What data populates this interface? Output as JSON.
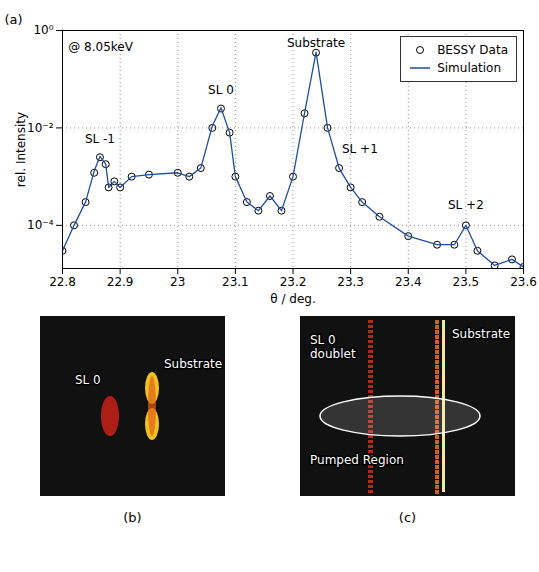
{
  "chart_data": {
    "type": "line",
    "panel_label": "(a)",
    "xlabel": "θ / deg.",
    "ylabel": "rel. Intensity",
    "log": "y",
    "grid": true,
    "legend": "top-right",
    "xlim": [
      22.8,
      23.6
    ],
    "xticks": [
      22.8,
      22.9,
      23,
      23.1,
      23.2,
      23.3,
      23.4,
      23.5,
      23.6
    ],
    "ylim": [
      1.3e-05,
      1
    ],
    "yticks": [
      {
        "value": 0.0001,
        "label": "10⁻⁴"
      },
      {
        "value": 0.01,
        "label": "10⁻²"
      },
      {
        "value": 1,
        "label": "10⁰"
      }
    ],
    "x": [
      22.8,
      22.82,
      22.84,
      22.855,
      22.865,
      22.875,
      22.88,
      22.89,
      22.9,
      22.92,
      22.95,
      23.0,
      23.02,
      23.04,
      23.06,
      23.075,
      23.09,
      23.1,
      23.12,
      23.14,
      23.16,
      23.18,
      23.2,
      23.22,
      23.24,
      23.26,
      23.28,
      23.3,
      23.32,
      23.35,
      23.4,
      23.45,
      23.48,
      23.5,
      23.52,
      23.55,
      23.58,
      23.6
    ],
    "series": [
      {
        "name": "BESSY Data",
        "type": "scatter",
        "marker": "circle",
        "color": "#000000",
        "values": [
          3e-05,
          0.0001,
          0.0003,
          0.0012,
          0.0025,
          0.0018,
          0.0006,
          0.0008,
          0.0006,
          0.001,
          0.0011,
          0.0012,
          0.001,
          0.0015,
          0.01,
          0.025,
          0.008,
          0.001,
          0.0003,
          0.0002,
          0.0004,
          0.0002,
          0.001,
          0.02,
          0.35,
          0.01,
          0.0015,
          0.0006,
          0.0003,
          0.00015,
          6e-05,
          4e-05,
          4e-05,
          0.0001,
          3e-05,
          1.5e-05,
          2e-05,
          1.4e-05
        ]
      },
      {
        "name": "Simulation",
        "type": "line",
        "line_style": "solid",
        "color": "#1f4e9a",
        "values": [
          3e-05,
          0.0001,
          0.0003,
          0.0013,
          0.0026,
          0.0018,
          0.0006,
          0.0008,
          0.0006,
          0.001,
          0.0011,
          0.0012,
          0.001,
          0.0015,
          0.011,
          0.026,
          0.008,
          0.001,
          0.0003,
          0.0002,
          0.0004,
          0.0002,
          0.001,
          0.02,
          0.36,
          0.01,
          0.0015,
          0.0006,
          0.0003,
          0.00015,
          6e-05,
          4e-05,
          4e-05,
          0.0001,
          3e-05,
          1.5e-05,
          2e-05,
          1.4e-05
        ]
      }
    ],
    "annotations": [
      {
        "text": "@ 8.05keV",
        "x": 22.81,
        "y": 0.45
      },
      {
        "text": "SL -1",
        "x": 22.865,
        "y": 0.005
      },
      {
        "text": "SL 0",
        "x": 23.075,
        "y": 0.05
      },
      {
        "text": "Substrate",
        "x": 23.24,
        "y": 0.45
      },
      {
        "text": "SL +1",
        "x": 23.285,
        "y": 0.003
      },
      {
        "text": "SL +2",
        "x": 23.5,
        "y": 0.00022
      }
    ]
  },
  "images": [
    {
      "label": "(b)",
      "texts": [
        "SL 0",
        "Substrate"
      ]
    },
    {
      "label": "(c)",
      "texts": [
        "SL 0 doublet",
        "Substrate",
        "Pumped Region"
      ]
    }
  ]
}
